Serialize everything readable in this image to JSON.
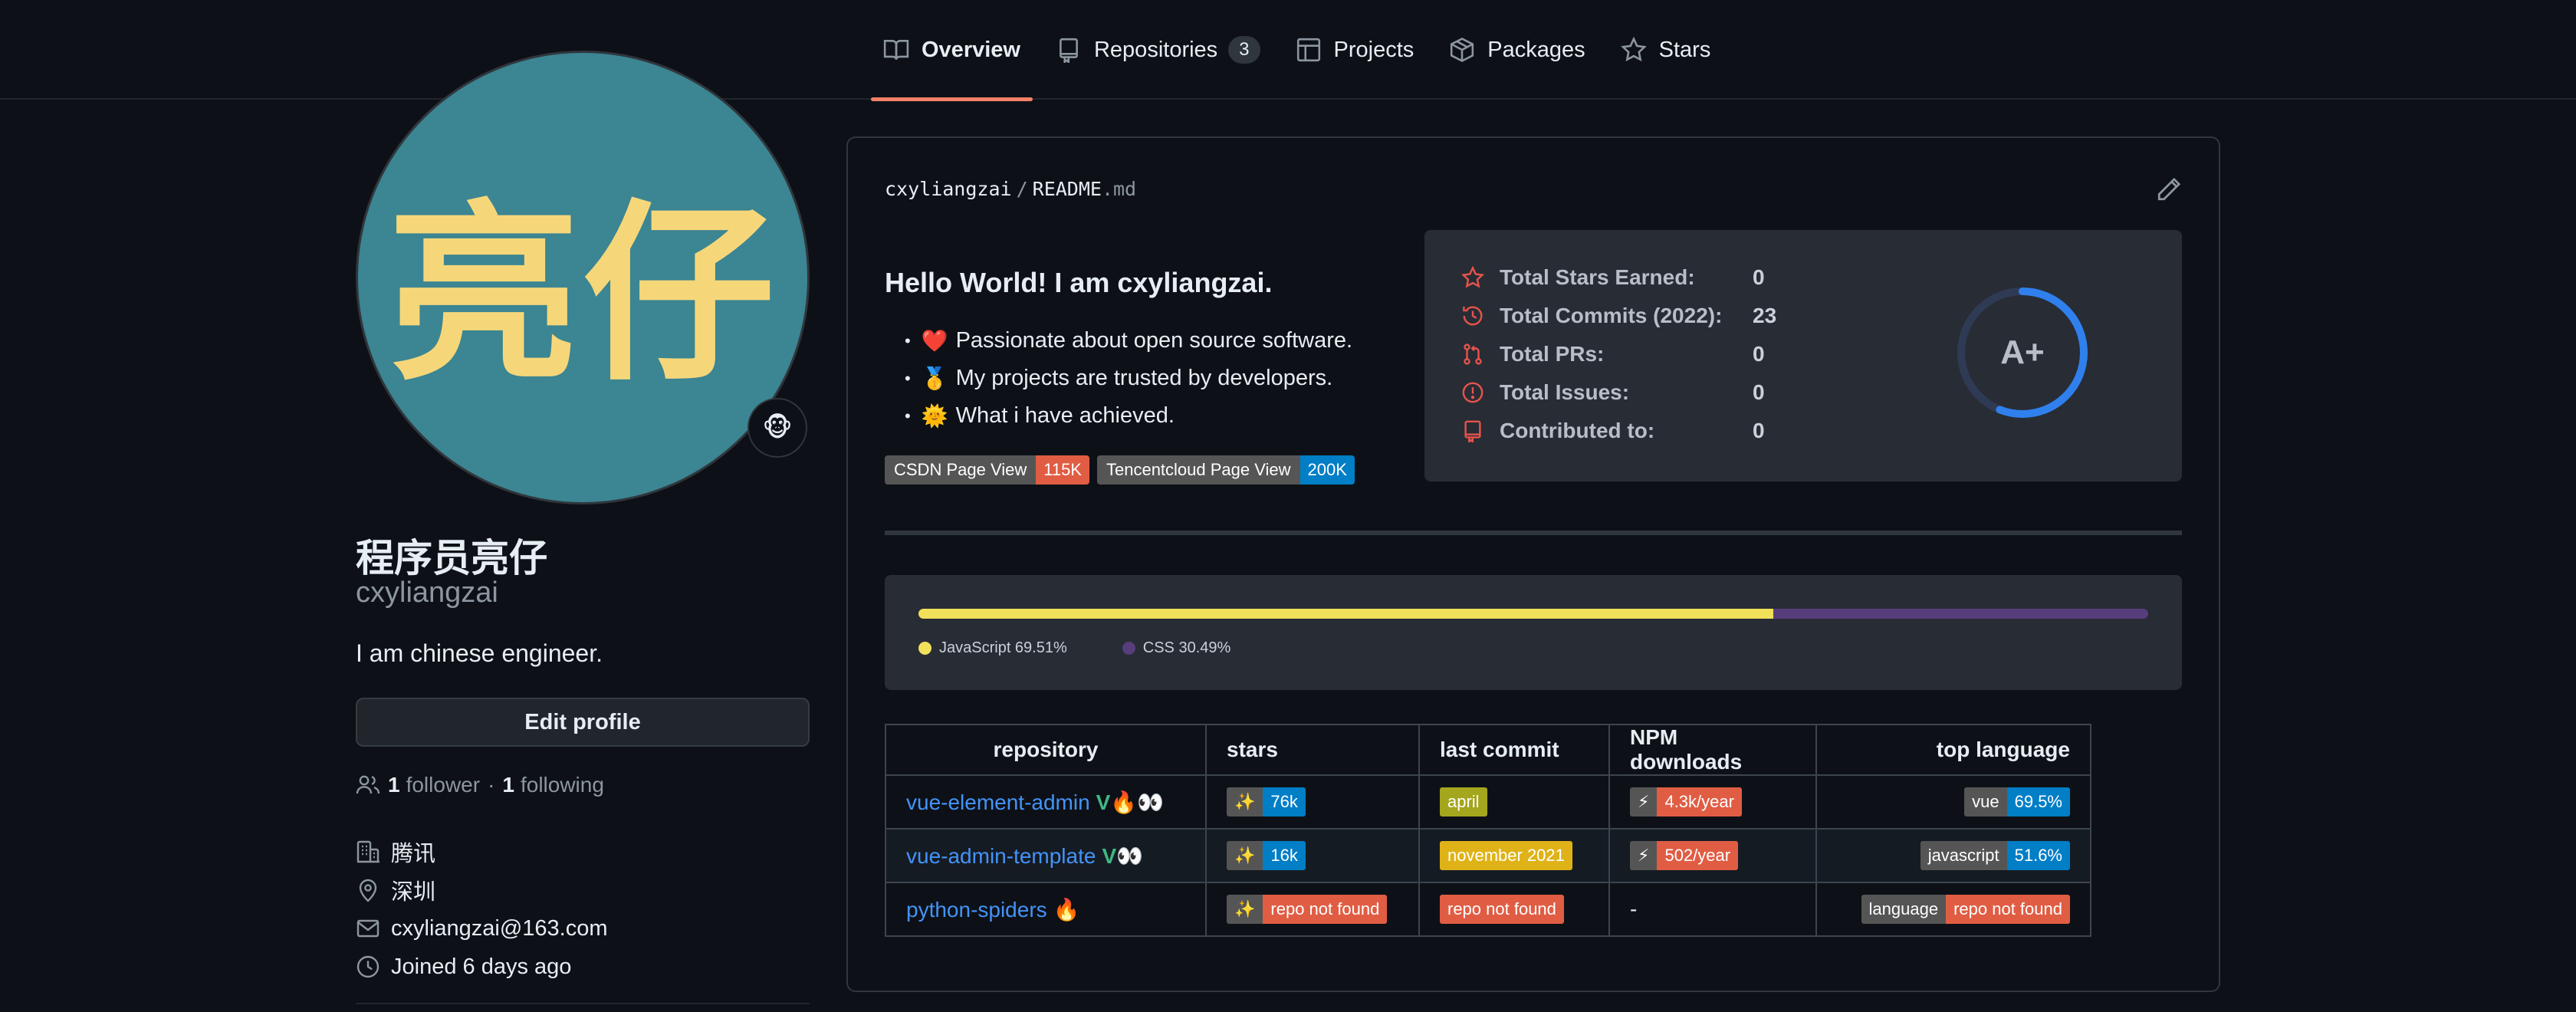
{
  "nav": {
    "tabs": [
      {
        "label": "Overview",
        "icon": "book-icon"
      },
      {
        "label": "Repositories",
        "icon": "repo-icon",
        "count": "3"
      },
      {
        "label": "Projects",
        "icon": "table-icon"
      },
      {
        "label": "Packages",
        "icon": "package-icon"
      },
      {
        "label": "Stars",
        "icon": "star-icon"
      }
    ]
  },
  "profile": {
    "avatar_text": "亮仔",
    "status_emoji": "🐵",
    "fullname": "程序员亮仔",
    "username": "cxyliangzai",
    "bio": "I am chinese engineer.",
    "edit_label": "Edit profile",
    "followers_count": "1",
    "followers_label": "follower",
    "separator": "·",
    "following_count": "1",
    "following_label": "following",
    "company": "腾讯",
    "location": "深圳",
    "email": "cxyliangzai@163.com",
    "joined": "Joined 6 days ago"
  },
  "readme": {
    "owner": "cxyliangzai",
    "path_sep": "/",
    "file_name": "README",
    "file_ext": ".md",
    "hello": "Hello World! I am cxyliangzai.",
    "bullet_char": "•",
    "bullets": [
      {
        "emoji": "❤️",
        "text": "Passionate about open source software."
      },
      {
        "emoji": "🥇",
        "text": "My projects are trusted by developers."
      },
      {
        "emoji": "🌞",
        "text": "What i have achieved."
      }
    ],
    "badges": [
      {
        "label": "CSDN Page View",
        "value": "115K",
        "color": "#e05d44"
      },
      {
        "label": "Tencentcloud Page View",
        "value": "200K",
        "color": "#007ec6"
      }
    ]
  },
  "stats": {
    "rows": [
      {
        "label": "Total Stars Earned:",
        "value": "0"
      },
      {
        "label": "Total Commits (2022):",
        "value": "23"
      },
      {
        "label": "Total PRs:",
        "value": "0"
      },
      {
        "label": "Total Issues:",
        "value": "0"
      },
      {
        "label": "Contributed to:",
        "value": "0"
      }
    ],
    "rank": "A+",
    "rank_progress": 0.56,
    "accent": "#e5534b",
    "ring_color": "#2f80ed"
  },
  "languages": {
    "items": [
      {
        "name": "JavaScript",
        "percent": 69.51,
        "label": "JavaScript 69.51%",
        "color": "#f1e05a"
      },
      {
        "name": "CSS",
        "percent": 30.49,
        "label": "CSS 30.49%",
        "color": "#563d7c"
      }
    ]
  },
  "repo_table": {
    "headers": [
      "repository",
      "stars",
      "last commit",
      "NPM downloads",
      "top language"
    ],
    "rows": [
      {
        "name": "vue-element-admin",
        "vue_mark": "V",
        "emoji": "🔥👀",
        "stars_icon": "✨",
        "stars": "76k",
        "stars_color": "#007ec6",
        "commit": "april",
        "commit_color": "#a4a61d",
        "npm_icon": "⚡",
        "npm": "4.3k/year",
        "npm_color": "#e05d44",
        "lang": "vue",
        "lang_pct": "69.5%",
        "lang_color": "#007ec6"
      },
      {
        "name": "vue-admin-template",
        "vue_mark": "V",
        "emoji": "👀",
        "stars_icon": "✨",
        "stars": "16k",
        "stars_color": "#007ec6",
        "commit": "november 2021",
        "commit_color": "#dfb317",
        "npm_icon": "⚡",
        "npm": "502/year",
        "npm_color": "#e05d44",
        "lang": "javascript",
        "lang_pct": "51.6%",
        "lang_color": "#007ec6"
      },
      {
        "name": "python-spiders",
        "vue_mark": "",
        "emoji": "🔥",
        "stars_icon": "✨",
        "stars": "repo not found",
        "stars_color": "#e05d44",
        "commit": "repo not found",
        "commit_color": "#e05d44",
        "npm": "-",
        "lang": "language",
        "lang_pct": "repo not found",
        "lang_color": "#e05d44"
      }
    ]
  }
}
